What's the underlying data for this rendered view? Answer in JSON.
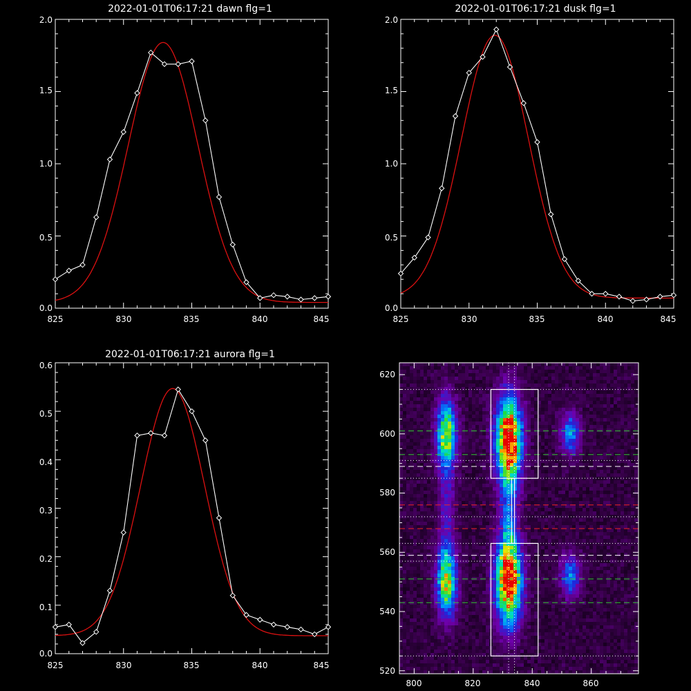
{
  "colors": {
    "background": "#000000",
    "axes": "#ffffff",
    "observed": "#ffffff",
    "fit": "#dd1111",
    "heatmap_box": "#ffffff",
    "line_green": "#33cc33",
    "line_red": "#ee2222",
    "line_white": "#ffffff"
  },
  "chart_data": [
    {
      "type": "line",
      "title": "2022-01-01T06:17:21 dawn flg=1",
      "xlim": [
        825,
        845
      ],
      "ylim": [
        0,
        2.0
      ],
      "xticks": [
        "825",
        "830",
        "835",
        "840",
        "845"
      ],
      "yticks": [
        "0.0",
        "0.5",
        "1.0",
        "1.5",
        "2.0"
      ],
      "series": [
        {
          "style": "white-diamonds",
          "x": [
            825,
            826,
            827,
            828,
            829,
            830,
            831,
            832,
            833,
            834,
            835,
            836,
            837,
            838,
            839,
            840,
            841,
            842,
            843,
            844,
            845
          ],
          "y": [
            0.2,
            0.26,
            0.3,
            0.63,
            1.03,
            1.22,
            1.49,
            1.77,
            1.69,
            1.69,
            1.71,
            1.3,
            0.77,
            0.44,
            0.18,
            0.07,
            0.09,
            0.08,
            0.06,
            0.07,
            0.08
          ]
        },
        {
          "style": "red-fit",
          "gaussian": {
            "amplitude": 1.8,
            "center": 832.9,
            "sigma": 2.55,
            "offset": 0.04
          }
        }
      ]
    },
    {
      "type": "line",
      "title": "2022-01-01T06:17:21 dusk flg=1",
      "xlim": [
        825,
        845
      ],
      "ylim": [
        0,
        2.0
      ],
      "xticks": [
        "825",
        "830",
        "835",
        "840",
        "845"
      ],
      "yticks": [
        "0.0",
        "0.5",
        "1.0",
        "1.5",
        "2.0"
      ],
      "series": [
        {
          "style": "white-diamonds",
          "x": [
            825,
            826,
            827,
            828,
            829,
            830,
            831,
            832,
            833,
            834,
            835,
            836,
            837,
            838,
            839,
            840,
            841,
            842,
            843,
            844,
            845
          ],
          "y": [
            0.24,
            0.35,
            0.49,
            0.83,
            1.33,
            1.63,
            1.74,
            1.93,
            1.67,
            1.42,
            1.15,
            0.65,
            0.34,
            0.19,
            0.1,
            0.1,
            0.08,
            0.05,
            0.06,
            0.08,
            0.09
          ]
        },
        {
          "style": "red-fit",
          "gaussian": {
            "amplitude": 1.82,
            "center": 831.9,
            "sigma": 2.45,
            "offset": 0.07
          }
        }
      ]
    },
    {
      "type": "line",
      "title": "2022-01-01T06:17:21 aurora flg=1",
      "xlim": [
        825,
        845
      ],
      "ylim": [
        0,
        0.6
      ],
      "xticks": [
        "825",
        "830",
        "835",
        "840",
        "845"
      ],
      "yticks": [
        "0.0",
        "0.1",
        "0.2",
        "0.3",
        "0.4",
        "0.5",
        "0.6"
      ],
      "series": [
        {
          "style": "white-diamonds",
          "x": [
            825,
            826,
            827,
            828,
            829,
            830,
            831,
            832,
            833,
            834,
            835,
            836,
            837,
            838,
            839,
            840,
            841,
            842,
            843,
            844,
            845
          ],
          "y": [
            0.055,
            0.06,
            0.022,
            0.045,
            0.13,
            0.25,
            0.45,
            0.455,
            0.45,
            0.545,
            0.5,
            0.44,
            0.28,
            0.12,
            0.08,
            0.07,
            0.06,
            0.055,
            0.05,
            0.04,
            0.055
          ]
        },
        {
          "style": "red-fit",
          "gaussian": {
            "amplitude": 0.51,
            "center": 833.6,
            "sigma": 2.35,
            "offset": 0.037
          }
        }
      ]
    },
    {
      "type": "heatmap",
      "title": "",
      "xlim": [
        795,
        876
      ],
      "ylim": [
        519,
        624
      ],
      "xticks": [
        "800",
        "820",
        "840",
        "860"
      ],
      "yticks": [
        "520",
        "540",
        "560",
        "580",
        "600",
        "620"
      ],
      "blobs": [
        {
          "x": 811,
          "y": 600,
          "sx": 2.3,
          "sy": 8,
          "amp": 0.72
        },
        {
          "x": 811,
          "y": 550,
          "sx": 2.3,
          "sy": 8,
          "amp": 0.72
        },
        {
          "x": 832,
          "y": 598,
          "sx": 3.1,
          "sy": 10,
          "amp": 1.0
        },
        {
          "x": 832,
          "y": 550,
          "sx": 3.1,
          "sy": 10,
          "amp": 1.0
        },
        {
          "x": 853,
          "y": 600,
          "sx": 2.3,
          "sy": 5,
          "amp": 0.4
        },
        {
          "x": 853,
          "y": 552,
          "sx": 2.3,
          "sy": 5,
          "amp": 0.4
        },
        {
          "x": 832,
          "y": 574,
          "sx": 2.0,
          "sy": 14,
          "amp": 0.28
        },
        {
          "x": 811,
          "y": 575,
          "sx": 2.0,
          "sy": 14,
          "amp": 0.18
        }
      ],
      "boxes": [
        {
          "x0": 826,
          "x1": 842,
          "y0": 585,
          "y1": 615
        },
        {
          "x0": 826,
          "x1": 842,
          "y0": 525,
          "y1": 563
        },
        {
          "x0": 833,
          "x1": 834,
          "y0": 563,
          "y1": 585
        }
      ],
      "hlines": [
        {
          "y": 615,
          "style": "dotted",
          "color": "white"
        },
        {
          "y": 601,
          "style": "dashed",
          "color": "green"
        },
        {
          "y": 593,
          "style": "dashed",
          "color": "green"
        },
        {
          "y": 591,
          "style": "dotted",
          "color": "white"
        },
        {
          "y": 589,
          "style": "dashed",
          "color": "white"
        },
        {
          "y": 585,
          "style": "dotted",
          "color": "white"
        },
        {
          "y": 576,
          "style": "dashed",
          "color": "red"
        },
        {
          "y": 572,
          "style": "dotted",
          "color": "white"
        },
        {
          "y": 568,
          "style": "dashed",
          "color": "red"
        },
        {
          "y": 563,
          "style": "dotted",
          "color": "white"
        },
        {
          "y": 559,
          "style": "dashed",
          "color": "white"
        },
        {
          "y": 557,
          "style": "dotted",
          "color": "white"
        },
        {
          "y": 551,
          "style": "dashed",
          "color": "green"
        },
        {
          "y": 543,
          "style": "dashed",
          "color": "green"
        },
        {
          "y": 525,
          "style": "dotted",
          "color": "white"
        }
      ],
      "vlines": [
        {
          "x": 832,
          "style": "dotted",
          "color": "white"
        },
        {
          "x": 834,
          "style": "dotted",
          "color": "white"
        }
      ]
    }
  ]
}
